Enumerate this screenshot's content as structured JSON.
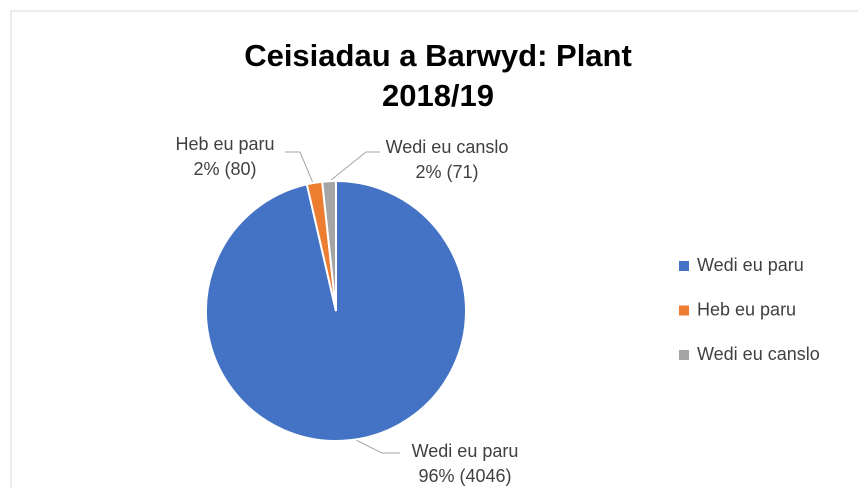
{
  "chart_data": {
    "type": "pie",
    "title": "Ceisiadau a Barwyd: Plant 2018/19",
    "categories": [
      "Wedi eu paru",
      "Heb eu paru",
      "Wedi eu canslo"
    ],
    "values": [
      4046,
      80,
      71
    ],
    "value_labels": [
      "96% (4046)",
      "2% (80)",
      "2% (71)"
    ],
    "colors": [
      "#4472c4",
      "#ed7d31",
      "#a5a5a5"
    ],
    "legend": "right"
  }
}
